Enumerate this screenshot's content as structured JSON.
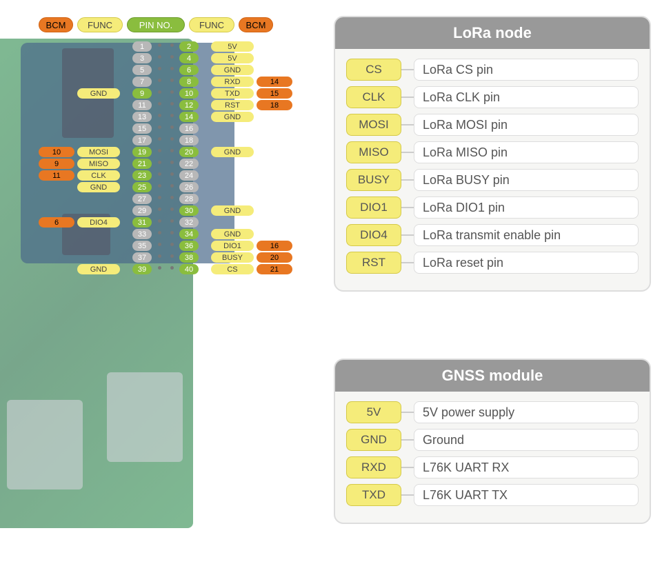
{
  "colors": {
    "orange": "#e87722",
    "yellow": "#f5ec7a",
    "green": "#8abd3e",
    "gray": "#b8b8b8",
    "panel_header": "#999999",
    "panel_bg": "#f6f6f4",
    "panel_border": "#dddddd",
    "desc_text": "#555555"
  },
  "legend": {
    "bcm": "BCM",
    "func": "FUNC",
    "pinno": "PIN NO."
  },
  "pins": [
    {
      "l_bcm": "",
      "l_func": "",
      "l_pin": "1",
      "l_active": false,
      "r_pin": "2",
      "r_active": true,
      "r_func": "5V",
      "r_bcm": ""
    },
    {
      "l_bcm": "",
      "l_func": "",
      "l_pin": "3",
      "l_active": false,
      "r_pin": "4",
      "r_active": true,
      "r_func": "5V",
      "r_bcm": ""
    },
    {
      "l_bcm": "",
      "l_func": "",
      "l_pin": "5",
      "l_active": false,
      "r_pin": "6",
      "r_active": true,
      "r_func": "GND",
      "r_bcm": ""
    },
    {
      "l_bcm": "",
      "l_func": "",
      "l_pin": "7",
      "l_active": false,
      "r_pin": "8",
      "r_active": true,
      "r_func": "RXD",
      "r_bcm": "14"
    },
    {
      "l_bcm": "",
      "l_func": "GND",
      "l_pin": "9",
      "l_active": true,
      "r_pin": "10",
      "r_active": true,
      "r_func": "TXD",
      "r_bcm": "15"
    },
    {
      "l_bcm": "",
      "l_func": "",
      "l_pin": "11",
      "l_active": false,
      "r_pin": "12",
      "r_active": true,
      "r_func": "RST",
      "r_bcm": "18"
    },
    {
      "l_bcm": "",
      "l_func": "",
      "l_pin": "13",
      "l_active": false,
      "r_pin": "14",
      "r_active": true,
      "r_func": "GND",
      "r_bcm": ""
    },
    {
      "l_bcm": "",
      "l_func": "",
      "l_pin": "15",
      "l_active": false,
      "r_pin": "16",
      "r_active": false,
      "r_func": "",
      "r_bcm": ""
    },
    {
      "l_bcm": "",
      "l_func": "",
      "l_pin": "17",
      "l_active": false,
      "r_pin": "18",
      "r_active": false,
      "r_func": "",
      "r_bcm": ""
    },
    {
      "l_bcm": "10",
      "l_func": "MOSI",
      "l_pin": "19",
      "l_active": true,
      "r_pin": "20",
      "r_active": true,
      "r_func": "GND",
      "r_bcm": ""
    },
    {
      "l_bcm": "9",
      "l_func": "MISO",
      "l_pin": "21",
      "l_active": true,
      "r_pin": "22",
      "r_active": false,
      "r_func": "",
      "r_bcm": ""
    },
    {
      "l_bcm": "11",
      "l_func": "CLK",
      "l_pin": "23",
      "l_active": true,
      "r_pin": "24",
      "r_active": false,
      "r_func": "",
      "r_bcm": ""
    },
    {
      "l_bcm": "",
      "l_func": "GND",
      "l_pin": "25",
      "l_active": true,
      "r_pin": "26",
      "r_active": false,
      "r_func": "",
      "r_bcm": ""
    },
    {
      "l_bcm": "",
      "l_func": "",
      "l_pin": "27",
      "l_active": false,
      "r_pin": "28",
      "r_active": false,
      "r_func": "",
      "r_bcm": ""
    },
    {
      "l_bcm": "",
      "l_func": "",
      "l_pin": "29",
      "l_active": false,
      "r_pin": "30",
      "r_active": true,
      "r_func": "GND",
      "r_bcm": ""
    },
    {
      "l_bcm": "6",
      "l_func": "DIO4",
      "l_pin": "31",
      "l_active": true,
      "r_pin": "32",
      "r_active": false,
      "r_func": "",
      "r_bcm": ""
    },
    {
      "l_bcm": "",
      "l_func": "",
      "l_pin": "33",
      "l_active": false,
      "r_pin": "34",
      "r_active": true,
      "r_func": "GND",
      "r_bcm": ""
    },
    {
      "l_bcm": "",
      "l_func": "",
      "l_pin": "35",
      "l_active": false,
      "r_pin": "36",
      "r_active": true,
      "r_func": "DIO1",
      "r_bcm": "16"
    },
    {
      "l_bcm": "",
      "l_func": "",
      "l_pin": "37",
      "l_active": false,
      "r_pin": "38",
      "r_active": true,
      "r_func": "BUSY",
      "r_bcm": "20"
    },
    {
      "l_bcm": "",
      "l_func": "GND",
      "l_pin": "39",
      "l_active": true,
      "r_pin": "40",
      "r_active": true,
      "r_func": "CS",
      "r_bcm": "21"
    }
  ],
  "lora": {
    "title": "LoRa node",
    "rows": [
      {
        "tag": "CS",
        "desc": "LoRa CS pin"
      },
      {
        "tag": "CLK",
        "desc": "LoRa CLK pin"
      },
      {
        "tag": "MOSI",
        "desc": "LoRa MOSI pin"
      },
      {
        "tag": "MISO",
        "desc": "LoRa MISO pin"
      },
      {
        "tag": "BUSY",
        "desc": "LoRa BUSY pin"
      },
      {
        "tag": "DIO1",
        "desc": "LoRa DIO1 pin"
      },
      {
        "tag": "DIO4",
        "desc": "LoRa transmit enable pin"
      },
      {
        "tag": "RST",
        "desc": "LoRa reset pin"
      }
    ]
  },
  "gnss": {
    "title": "GNSS module",
    "rows": [
      {
        "tag": "5V",
        "desc": "5V power supply"
      },
      {
        "tag": "GND",
        "desc": "Ground"
      },
      {
        "tag": "RXD",
        "desc": "L76K UART RX"
      },
      {
        "tag": "TXD",
        "desc": "L76K UART TX"
      }
    ]
  }
}
